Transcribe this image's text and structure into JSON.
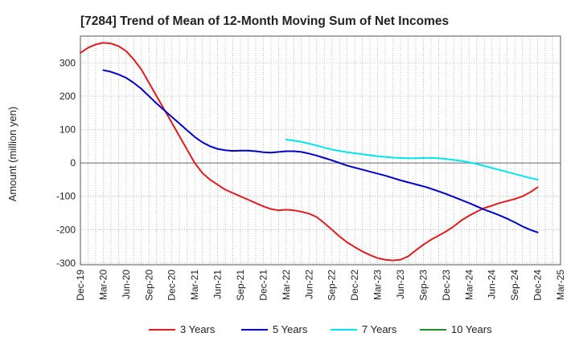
{
  "chart_data": {
    "type": "line",
    "title": "[7284]  Trend of Mean of 12-Month Moving Sum of Net Incomes",
    "xlabel": "",
    "ylabel": "Amount (million yen)",
    "ylim": [
      -305,
      380
    ],
    "yticks": [
      -300,
      -200,
      -100,
      0,
      100,
      200,
      300
    ],
    "ytick_labels": [
      "-300",
      "-200",
      "-100",
      "0",
      "100",
      "200",
      "300"
    ],
    "categories": [
      "Dec-19",
      "Mar-20",
      "Jun-20",
      "Sep-20",
      "Dec-20",
      "Mar-21",
      "Jun-21",
      "Sep-21",
      "Dec-21",
      "Mar-22",
      "Jun-22",
      "Sep-22",
      "Dec-22",
      "Mar-23",
      "Jun-23",
      "Sep-23",
      "Dec-23",
      "Mar-24",
      "Jun-24",
      "Sep-24",
      "Dec-24",
      "Mar-25"
    ],
    "grid": true,
    "legend_position": "bottom",
    "series": [
      {
        "name": "3 Years",
        "color": "#e41a1c",
        "x": [
          "Dec-19",
          "Jan-20",
          "Feb-20",
          "Mar-20",
          "Apr-20",
          "May-20",
          "Jun-20",
          "Jul-20",
          "Aug-20",
          "Sep-20",
          "Oct-20",
          "Nov-20",
          "Dec-20",
          "Jan-21",
          "Feb-21",
          "Mar-21",
          "Apr-21",
          "May-21",
          "Jun-21",
          "Jul-21",
          "Aug-21",
          "Sep-21",
          "Oct-21",
          "Nov-21",
          "Dec-21",
          "Jan-22",
          "Feb-22",
          "Mar-22",
          "Apr-22",
          "May-22",
          "Jun-22",
          "Jul-22",
          "Aug-22",
          "Sep-22",
          "Oct-22",
          "Nov-22",
          "Dec-22",
          "Jan-23",
          "Feb-23",
          "Mar-23",
          "Apr-23",
          "May-23",
          "Jun-23",
          "Jul-23",
          "Aug-23",
          "Sep-23",
          "Oct-23",
          "Nov-23",
          "Dec-23",
          "Jan-24",
          "Feb-24",
          "Mar-24",
          "Apr-24",
          "May-24",
          "Jun-24",
          "Jul-24",
          "Aug-24",
          "Sep-24",
          "Oct-24",
          "Nov-24",
          "Dec-24"
        ],
        "values": [
          330,
          345,
          355,
          360,
          358,
          350,
          335,
          310,
          280,
          240,
          200,
          160,
          120,
          80,
          40,
          0,
          -30,
          -50,
          -65,
          -80,
          -90,
          -100,
          -110,
          -120,
          -130,
          -138,
          -142,
          -140,
          -142,
          -146,
          -152,
          -162,
          -180,
          -200,
          -220,
          -238,
          -252,
          -265,
          -276,
          -285,
          -290,
          -292,
          -290,
          -280,
          -262,
          -245,
          -230,
          -218,
          -205,
          -190,
          -172,
          -158,
          -146,
          -135,
          -128,
          -120,
          -114,
          -108,
          -100,
          -88,
          -73
        ]
      },
      {
        "name": "5 Years",
        "color": "#0000cc",
        "x": [
          "Mar-20",
          "Apr-20",
          "May-20",
          "Jun-20",
          "Jul-20",
          "Aug-20",
          "Sep-20",
          "Oct-20",
          "Nov-20",
          "Dec-20",
          "Jan-21",
          "Feb-21",
          "Mar-21",
          "Apr-21",
          "May-21",
          "Jun-21",
          "Jul-21",
          "Aug-21",
          "Sep-21",
          "Oct-21",
          "Nov-21",
          "Dec-21",
          "Jan-22",
          "Feb-22",
          "Mar-22",
          "Apr-22",
          "May-22",
          "Jun-22",
          "Jul-22",
          "Aug-22",
          "Sep-22",
          "Oct-22",
          "Nov-22",
          "Dec-22",
          "Jan-23",
          "Feb-23",
          "Mar-23",
          "Apr-23",
          "May-23",
          "Jun-23",
          "Jul-23",
          "Aug-23",
          "Sep-23",
          "Oct-23",
          "Nov-23",
          "Dec-23",
          "Jan-24",
          "Feb-24",
          "Mar-24",
          "Apr-24",
          "May-24",
          "Jun-24",
          "Jul-24",
          "Aug-24",
          "Sep-24",
          "Oct-24",
          "Nov-24",
          "Dec-24"
        ],
        "values": [
          278,
          273,
          265,
          255,
          240,
          222,
          200,
          178,
          158,
          138,
          118,
          98,
          78,
          62,
          50,
          42,
          38,
          36,
          37,
          37,
          35,
          32,
          31,
          33,
          35,
          35,
          33,
          28,
          22,
          15,
          8,
          0,
          -8,
          -14,
          -20,
          -26,
          -32,
          -38,
          -45,
          -52,
          -58,
          -64,
          -70,
          -77,
          -85,
          -93,
          -102,
          -111,
          -120,
          -130,
          -140,
          -148,
          -157,
          -167,
          -178,
          -190,
          -200,
          -208
        ]
      },
      {
        "name": "7 Years",
        "color": "#00e5ee",
        "x": [
          "Mar-22",
          "Apr-22",
          "May-22",
          "Jun-22",
          "Jul-22",
          "Aug-22",
          "Sep-22",
          "Oct-22",
          "Nov-22",
          "Dec-22",
          "Jan-23",
          "Feb-23",
          "Mar-23",
          "Apr-23",
          "May-23",
          "Jun-23",
          "Jul-23",
          "Aug-23",
          "Sep-23",
          "Oct-23",
          "Nov-23",
          "Dec-23",
          "Jan-24",
          "Feb-24",
          "Mar-24",
          "Apr-24",
          "May-24",
          "Jun-24",
          "Jul-24",
          "Aug-24",
          "Sep-24",
          "Oct-24",
          "Nov-24",
          "Dec-24"
        ],
        "values": [
          70,
          67,
          63,
          58,
          52,
          46,
          40,
          36,
          32,
          29,
          26,
          23,
          20,
          18,
          16,
          15,
          14,
          14,
          15,
          15,
          14,
          12,
          9,
          6,
          2,
          -3,
          -9,
          -15,
          -21,
          -27,
          -33,
          -39,
          -45,
          -50
        ]
      },
      {
        "name": "10 Years",
        "color": "#228b22",
        "x": [],
        "values": []
      }
    ]
  }
}
